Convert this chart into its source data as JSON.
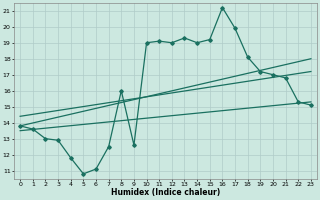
{
  "title": "",
  "xlabel": "Humidex (Indice chaleur)",
  "ylabel": "",
  "bg_color": "#cce8e0",
  "line_color": "#1a7060",
  "grid_color": "#b0ccc8",
  "xlim": [
    -0.5,
    23.5
  ],
  "ylim": [
    10.5,
    21.5
  ],
  "xticks": [
    0,
    1,
    2,
    3,
    4,
    5,
    6,
    7,
    8,
    9,
    10,
    11,
    12,
    13,
    14,
    15,
    16,
    17,
    18,
    19,
    20,
    21,
    22,
    23
  ],
  "yticks": [
    11,
    12,
    13,
    14,
    15,
    16,
    17,
    18,
    19,
    20,
    21
  ],
  "main_x": [
    0,
    1,
    2,
    3,
    4,
    5,
    6,
    7,
    8,
    9,
    10,
    11,
    12,
    13,
    14,
    15,
    16,
    17,
    18,
    19,
    20,
    21,
    22,
    23
  ],
  "main_y": [
    13.8,
    13.6,
    13.0,
    12.9,
    11.8,
    10.8,
    11.1,
    12.5,
    16.0,
    12.6,
    19.0,
    19.1,
    19.0,
    19.3,
    19.0,
    19.2,
    21.2,
    19.9,
    18.1,
    17.2,
    17.0,
    16.8,
    15.3,
    15.1
  ],
  "trend1_x": [
    0,
    23
  ],
  "trend1_y": [
    13.8,
    18.0
  ],
  "trend2_x": [
    0,
    23
  ],
  "trend2_y": [
    13.5,
    15.3
  ],
  "trend3_x": [
    0,
    23
  ],
  "trend3_y": [
    14.4,
    17.2
  ]
}
